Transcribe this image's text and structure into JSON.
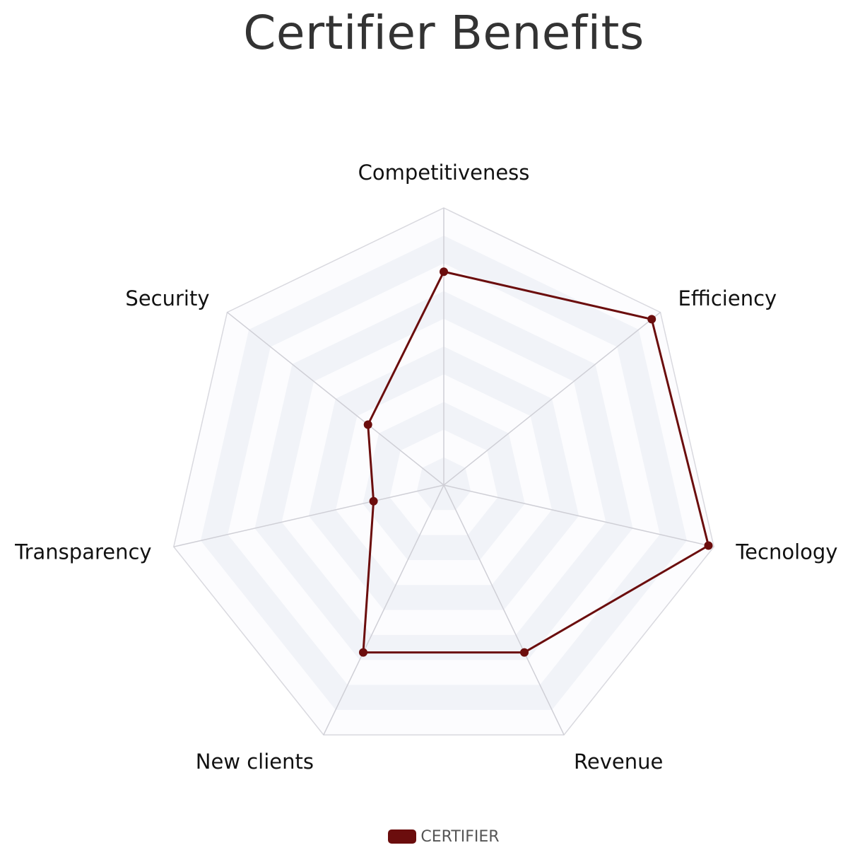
{
  "title": "Certifier Benefits",
  "colors": {
    "series": "#6b0d0d",
    "grid_line": "#d9d9df",
    "band_fill": "#f1f3f8",
    "band_fill_light": "#fcfcfe"
  },
  "chart_data": {
    "type": "radar",
    "title": "Certifier Benefits",
    "categories": [
      "Competitiveness",
      "Efficiency",
      "Tecnology",
      "Revenue",
      "New clients",
      "Transparency",
      "Security"
    ],
    "series": [
      {
        "name": "CERTIFIER",
        "color": "#6b0d0d",
        "values": [
          7.7,
          9.6,
          9.8,
          6.7,
          6.7,
          2.6,
          3.5
        ]
      }
    ],
    "rlim": [
      0,
      10
    ],
    "grid_levels": 10,
    "legend_position": "bottom"
  },
  "legend": {
    "label": "CERTIFIER"
  }
}
